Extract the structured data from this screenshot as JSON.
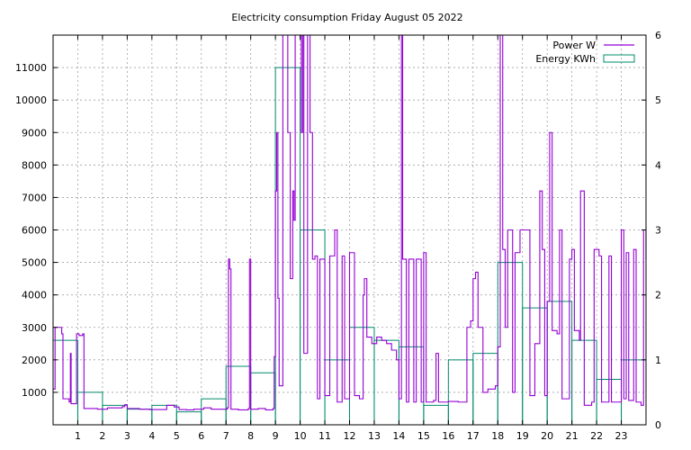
{
  "chart_data": {
    "type": "line",
    "title": "Electricity consumption Friday August 05 2022",
    "grid": true,
    "legend_position": "top-right",
    "x_axis": {
      "range": [
        0,
        24
      ],
      "ticks": [
        1,
        2,
        3,
        4,
        5,
        6,
        7,
        8,
        9,
        10,
        11,
        12,
        13,
        14,
        15,
        16,
        17,
        18,
        19,
        20,
        21,
        22,
        23
      ]
    },
    "y_left": {
      "range": [
        0,
        12000
      ],
      "ticks": [
        1000,
        2000,
        3000,
        4000,
        5000,
        6000,
        7000,
        8000,
        9000,
        10000,
        11000
      ]
    },
    "y_right": {
      "range": [
        0,
        6
      ],
      "ticks": [
        0,
        1,
        2,
        3,
        4,
        5,
        6
      ]
    },
    "series": [
      {
        "name": "Power W",
        "axis": "left",
        "color": "#9400d3",
        "style": "step-line",
        "points": [
          [
            0,
            1100
          ],
          [
            0.08,
            3000
          ],
          [
            0.35,
            2800
          ],
          [
            0.4,
            800
          ],
          [
            0.65,
            700
          ],
          [
            0.7,
            2200
          ],
          [
            0.73,
            650
          ],
          [
            0.95,
            2800
          ],
          [
            1.05,
            2750
          ],
          [
            1.2,
            2800
          ],
          [
            1.25,
            500
          ],
          [
            1.8,
            480
          ],
          [
            2.2,
            520
          ],
          [
            2.8,
            560
          ],
          [
            2.9,
            620
          ],
          [
            3.0,
            500
          ],
          [
            3.5,
            480
          ],
          [
            3.9,
            470
          ],
          [
            4.6,
            600
          ],
          [
            4.9,
            550
          ],
          [
            5.1,
            470
          ],
          [
            5.4,
            460
          ],
          [
            5.7,
            480
          ],
          [
            6.1,
            520
          ],
          [
            6.4,
            480
          ],
          [
            6.7,
            480
          ],
          [
            7.05,
            520
          ],
          [
            7.1,
            5100
          ],
          [
            7.15,
            4800
          ],
          [
            7.2,
            480
          ],
          [
            7.5,
            460
          ],
          [
            7.9,
            500
          ],
          [
            7.95,
            5100
          ],
          [
            8.0,
            480
          ],
          [
            8.3,
            500
          ],
          [
            8.6,
            460
          ],
          [
            8.9,
            500
          ],
          [
            8.95,
            2100
          ],
          [
            9.0,
            7200
          ],
          [
            9.05,
            9000
          ],
          [
            9.1,
            3900
          ],
          [
            9.15,
            1200
          ],
          [
            9.3,
            12000
          ],
          [
            9.5,
            9000
          ],
          [
            9.6,
            4500
          ],
          [
            9.7,
            7200
          ],
          [
            9.75,
            6300
          ],
          [
            9.8,
            12000
          ],
          [
            10.05,
            9000
          ],
          [
            10.1,
            12000
          ],
          [
            10.15,
            2200
          ],
          [
            10.3,
            12000
          ],
          [
            10.4,
            9000
          ],
          [
            10.5,
            5100
          ],
          [
            10.6,
            5200
          ],
          [
            10.7,
            800
          ],
          [
            10.8,
            5100
          ],
          [
            11.0,
            900
          ],
          [
            11.2,
            5200
          ],
          [
            11.4,
            6000
          ],
          [
            11.5,
            700
          ],
          [
            11.7,
            5200
          ],
          [
            11.8,
            800
          ],
          [
            12.0,
            5300
          ],
          [
            12.2,
            900
          ],
          [
            12.4,
            800
          ],
          [
            12.55,
            4000
          ],
          [
            12.6,
            4500
          ],
          [
            12.7,
            2700
          ],
          [
            12.9,
            2500
          ],
          [
            13.1,
            2700
          ],
          [
            13.3,
            2600
          ],
          [
            13.5,
            2500
          ],
          [
            13.7,
            2300
          ],
          [
            13.9,
            2000
          ],
          [
            14.0,
            800
          ],
          [
            14.1,
            12000
          ],
          [
            14.15,
            5100
          ],
          [
            14.3,
            700
          ],
          [
            14.4,
            5100
          ],
          [
            14.6,
            700
          ],
          [
            14.7,
            5100
          ],
          [
            14.9,
            700
          ],
          [
            15.0,
            5300
          ],
          [
            15.1,
            700
          ],
          [
            15.4,
            750
          ],
          [
            15.5,
            2200
          ],
          [
            15.6,
            700
          ],
          [
            16.0,
            720
          ],
          [
            16.4,
            700
          ],
          [
            16.6,
            700
          ],
          [
            16.75,
            3000
          ],
          [
            16.9,
            3200
          ],
          [
            17.0,
            4500
          ],
          [
            17.1,
            4700
          ],
          [
            17.2,
            3000
          ],
          [
            17.4,
            1000
          ],
          [
            17.6,
            1100
          ],
          [
            17.9,
            1200
          ],
          [
            18.0,
            2400
          ],
          [
            18.1,
            12000
          ],
          [
            18.2,
            5400
          ],
          [
            18.3,
            3000
          ],
          [
            18.4,
            6000
          ],
          [
            18.6,
            1000
          ],
          [
            18.7,
            5300
          ],
          [
            18.9,
            6000
          ],
          [
            19.1,
            6000
          ],
          [
            19.3,
            900
          ],
          [
            19.5,
            2500
          ],
          [
            19.7,
            7200
          ],
          [
            19.8,
            5400
          ],
          [
            19.9,
            900
          ],
          [
            20.0,
            3800
          ],
          [
            20.1,
            9000
          ],
          [
            20.2,
            2900
          ],
          [
            20.4,
            2800
          ],
          [
            20.5,
            6000
          ],
          [
            20.6,
            800
          ],
          [
            20.9,
            5100
          ],
          [
            21.0,
            5400
          ],
          [
            21.1,
            2900
          ],
          [
            21.3,
            2600
          ],
          [
            21.35,
            7200
          ],
          [
            21.5,
            600
          ],
          [
            21.8,
            700
          ],
          [
            21.9,
            5400
          ],
          [
            22.1,
            5200
          ],
          [
            22.2,
            700
          ],
          [
            22.5,
            5200
          ],
          [
            22.6,
            700
          ],
          [
            22.9,
            700
          ],
          [
            23.0,
            6000
          ],
          [
            23.1,
            800
          ],
          [
            23.2,
            5300
          ],
          [
            23.3,
            750
          ],
          [
            23.5,
            5400
          ],
          [
            23.6,
            700
          ],
          [
            23.8,
            600
          ],
          [
            23.9,
            6000
          ],
          [
            24.0,
            5100
          ]
        ]
      },
      {
        "name": "Energy KWh",
        "axis": "right",
        "color": "#008b6b",
        "style": "step-bars",
        "values": [
          1.3,
          0.5,
          0.3,
          0.24,
          0.3,
          0.2,
          0.4,
          0.9,
          0.8,
          5.5,
          3.0,
          1.0,
          1.5,
          1.3,
          1.2,
          0.3,
          1.0,
          1.1,
          2.5,
          1.8,
          1.9,
          1.3,
          0.7,
          1.0
        ]
      }
    ]
  }
}
